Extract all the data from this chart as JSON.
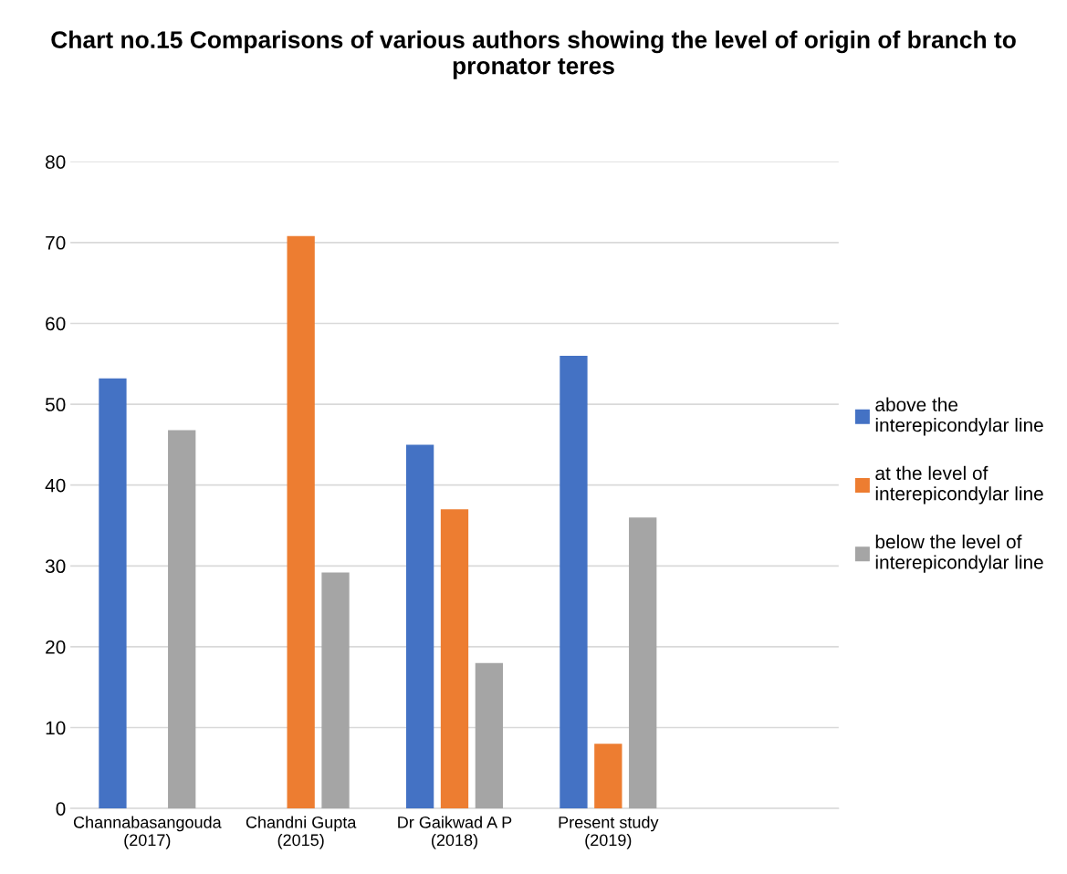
{
  "chart_data": {
    "type": "bar",
    "title": "Chart no.15 Comparisons of various authors showing the level of origin of branch to pronator teres",
    "categories": [
      "Channabasangouda (2017)",
      "Chandni Gupta (2015)",
      "Dr Gaikwad A P (2018)",
      "Present study (2019)",
      null
    ],
    "series": [
      {
        "name": "above the\ninterepicondylar line",
        "color": "#4472c4",
        "values": [
          53.2,
          null,
          45,
          56,
          null
        ]
      },
      {
        "name": "at the level of\ninterepicondylar line",
        "color": "#ed7d31",
        "values": [
          null,
          70.8,
          37,
          8,
          null
        ]
      },
      {
        "name": "below the level of\ninterepicondylar line",
        "color": "#a5a5a5",
        "values": [
          46.8,
          29.2,
          18,
          36,
          null
        ]
      }
    ],
    "ylim": [
      0,
      80
    ],
    "yticks": [
      0,
      10,
      20,
      30,
      40,
      50,
      60,
      70,
      80
    ],
    "grid": "y",
    "legend": "right"
  }
}
